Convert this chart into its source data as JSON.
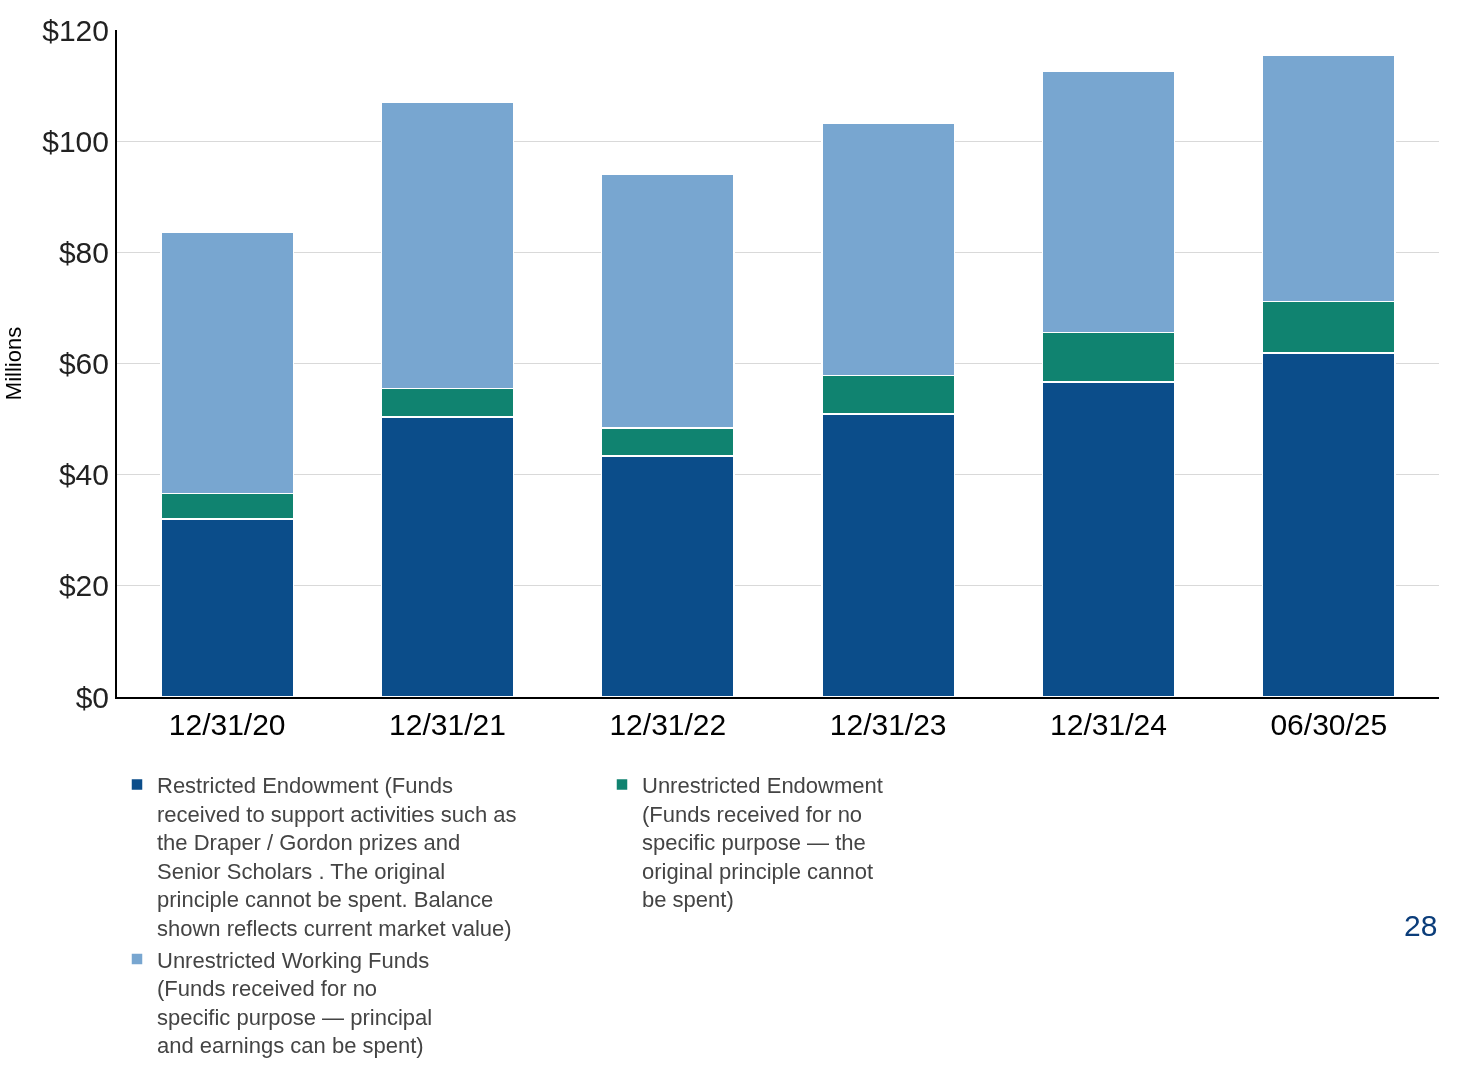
{
  "chart_data": {
    "type": "bar",
    "stacked": true,
    "ylabel": "Millions",
    "categories": [
      "12/31/20",
      "12/31/21",
      "12/31/22",
      "12/31/23",
      "12/31/24",
      "06/30/25"
    ],
    "series": [
      {
        "name": "Restricted Endowment (Funds\nreceived to support activities such as\nthe Draper / Gordon prizes and\nSenior Scholars . The original\nprinciple cannot be spent. Balance\nshown reflects current market value)",
        "color": "#0b4d8a",
        "values": [
          32.0,
          50.4,
          43.4,
          50.9,
          56.7,
          61.9
        ]
      },
      {
        "name": "Unrestricted Endowment\n(Funds received for no\nspecific purpose — the\noriginal principle cannot\nbe spent)",
        "color": "#108370",
        "values": [
          4.6,
          5.1,
          5.0,
          6.9,
          8.9,
          9.3
        ]
      },
      {
        "name": "Unrestricted Working Funds\n(Funds received for no\nspecific purpose — principal\nand earnings can be spent)",
        "color": "#78a6d0",
        "values": [
          47.0,
          51.5,
          45.7,
          45.5,
          47.0,
          44.3
        ]
      }
    ],
    "ylim": [
      0,
      120
    ],
    "yticks": [
      {
        "value": 0,
        "label": "$0"
      },
      {
        "value": 20,
        "label": "$20"
      },
      {
        "value": 40,
        "label": "$40"
      },
      {
        "value": 60,
        "label": "$60"
      },
      {
        "value": 80,
        "label": "$80"
      },
      {
        "value": 100,
        "label": "$100"
      },
      {
        "value": 120,
        "label": "$120"
      }
    ],
    "grid": "y",
    "legend": "bottom",
    "annotations": [
      "28"
    ]
  }
}
